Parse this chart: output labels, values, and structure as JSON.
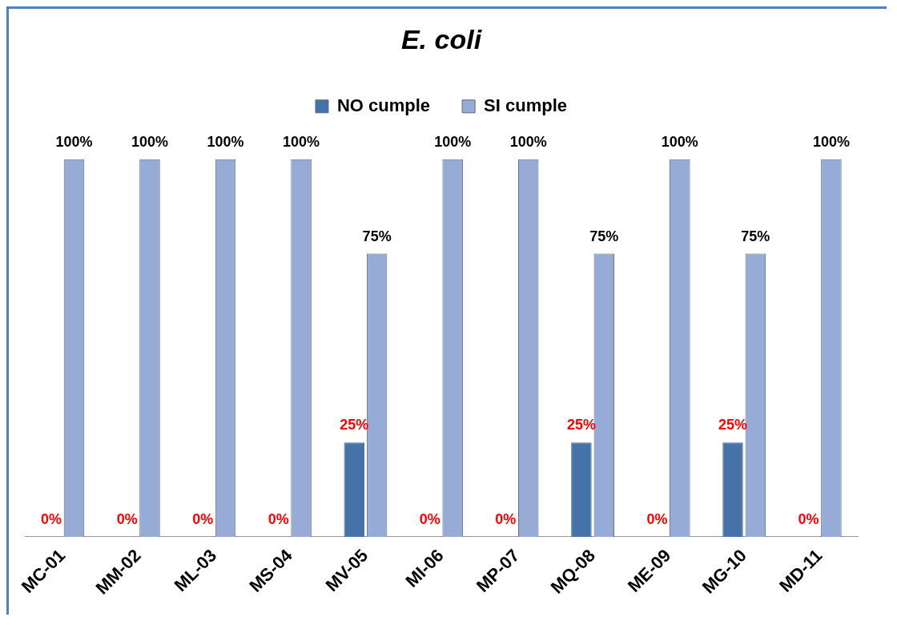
{
  "chart_data": {
    "type": "bar",
    "title": "E. coli",
    "categories": [
      "MC-01",
      "MM-02",
      "ML-03",
      "MS-04",
      "MV-05",
      "MI-06",
      "MP-07",
      "MQ-08",
      "ME-09",
      "MG-10",
      "MD-11"
    ],
    "series": [
      {
        "name": "NO cumple",
        "color": "#4573a9",
        "values": [
          0,
          0,
          0,
          0,
          25,
          0,
          0,
          25,
          0,
          25,
          0
        ],
        "value_labels": [
          "0%",
          "0%",
          "0%",
          "0%",
          "25%",
          "0%",
          "0%",
          "25%",
          "0%",
          "25%",
          "0%"
        ]
      },
      {
        "name": "SI cumple",
        "color": "#96acd6",
        "values": [
          100,
          100,
          100,
          100,
          75,
          100,
          100,
          75,
          100,
          75,
          100
        ],
        "value_labels": [
          "100%",
          "100%",
          "100%",
          "100%",
          "75%",
          "100%",
          "100%",
          "75%",
          "100%",
          "75%",
          "100%"
        ]
      }
    ],
    "legend": "top",
    "grid": false
  }
}
